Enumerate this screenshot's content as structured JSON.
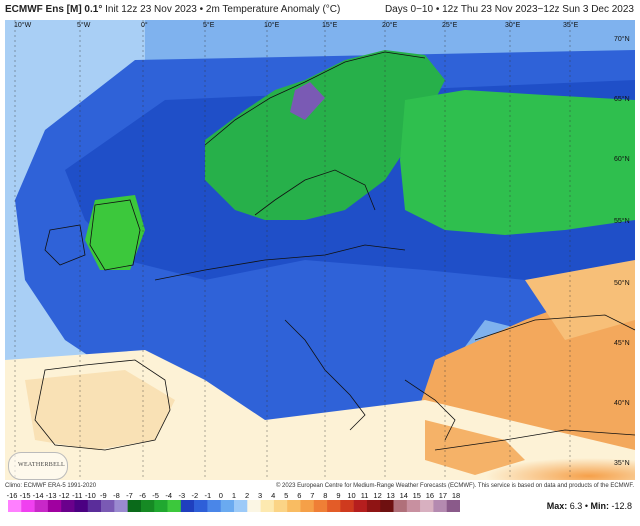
{
  "header": {
    "product": "ECMWF Ens [M] 0.1°",
    "init": "Init 12z 23 Nov 2023",
    "variable": "2m Temperature Anomaly (°C)",
    "range": "Days 0−10 • 12z Thu 23 Nov 2023−12z Sun 3 Dec 2023"
  },
  "lon_labels": [
    "10°W",
    "5°W",
    "0°",
    "5°E",
    "10°E",
    "15°E",
    "20°E",
    "25°E",
    "30°E",
    "35°E"
  ],
  "lat_labels": [
    "70°N",
    "65°N",
    "60°N",
    "55°N",
    "50°N",
    "45°N",
    "40°N",
    "35°N"
  ],
  "credits": {
    "left": "Climo: ECMWF ERA-5 1991-2020",
    "right": "© 2023 European Centre for Medium-Range Weather Forecasts (ECMWF). This service is based on data and products of the ECMWF."
  },
  "logo_text": "WEATHERBELL",
  "colorbar": {
    "ticks": [
      "-16",
      "-15",
      "-14",
      "-13",
      "-12",
      "-11",
      "-10",
      "-9",
      "-8",
      "-7",
      "-6",
      "-5",
      "-4",
      "-3",
      "-2",
      "-1",
      "0",
      "1",
      "2",
      "3",
      "4",
      "5",
      "6",
      "7",
      "8",
      "9",
      "10",
      "11",
      "12",
      "13",
      "14",
      "15",
      "16",
      "17",
      "18"
    ],
    "colors": [
      "#ff80ff",
      "#f040f0",
      "#c828c8",
      "#a000a0",
      "#6a008c",
      "#4b0082",
      "#5a2d9a",
      "#7a5ab4",
      "#9a8ad0",
      "#0a6a1a",
      "#168a24",
      "#20a830",
      "#3cc83c",
      "#1f3fbe",
      "#2e5fd8",
      "#4a86e8",
      "#6aaaf0",
      "#9ccaf8",
      "#fbf6e4",
      "#fde9b0",
      "#fbd486",
      "#f9bc62",
      "#f5a048",
      "#ef7f36",
      "#e35c28",
      "#cf3a1e",
      "#b51e1e",
      "#8f1414",
      "#6e1010",
      "#b0707a",
      "#c890a0",
      "#d8b0c0",
      "#b48ab0",
      "#8a5a8a"
    ]
  },
  "stats": {
    "max_label": "Max:",
    "max": "6.3",
    "sep": " • ",
    "min_label": "Min:",
    "min": "-12.8"
  },
  "colors": {
    "sea_blue": "#3a78dc",
    "land_blue": "#2f5fd6",
    "cold_green": "#2ab84a",
    "warm_orange": "#f3a85c",
    "neutral_cream": "#fdf2d6"
  }
}
